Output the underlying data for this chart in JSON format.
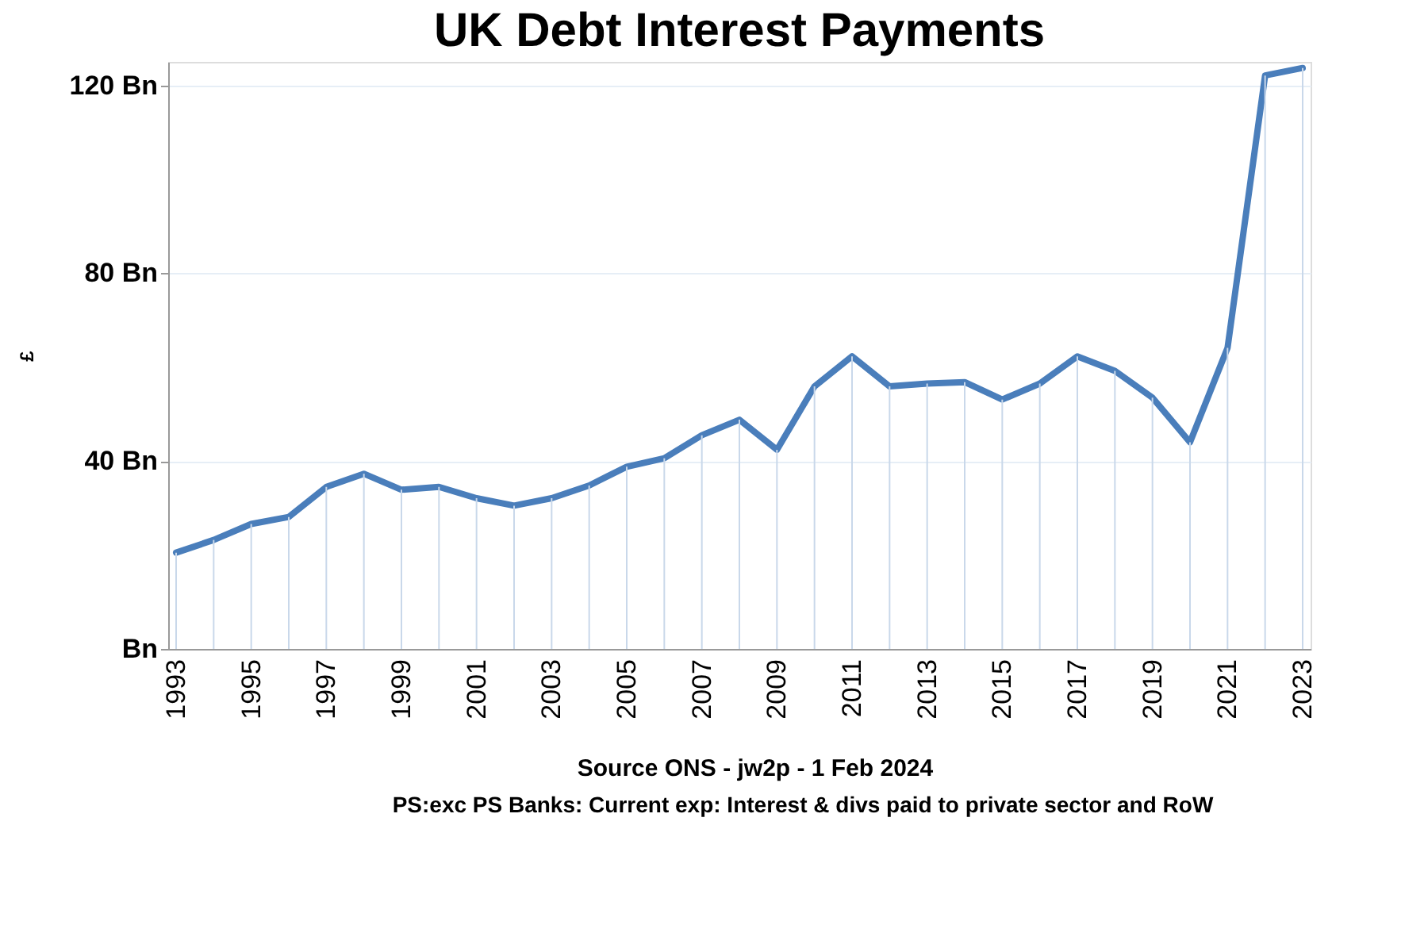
{
  "chart_data": {
    "type": "line",
    "title": "UK Debt Interest Payments",
    "ylabel": "£",
    "x": [
      1993,
      1994,
      1995,
      1996,
      1997,
      1998,
      1999,
      2000,
      2001,
      2002,
      2003,
      2004,
      2005,
      2006,
      2007,
      2008,
      2009,
      2010,
      2011,
      2012,
      2013,
      2014,
      2015,
      2016,
      2017,
      2018,
      2019,
      2020,
      2021,
      2022,
      2023
    ],
    "series": [
      {
        "color": "#4a7ebb",
        "values": [
          20.5,
          23.2,
          26.6,
          28.1,
          34.5,
          37.3,
          33.9,
          34.5,
          32.1,
          30.5,
          32.1,
          34.8,
          38.8,
          40.6,
          45.5,
          48.8,
          42.4,
          55.9,
          62.3,
          55.9,
          56.5,
          56.8,
          53.1,
          56.5,
          62.3,
          59.2,
          53.5,
          44.0,
          64.1,
          122.1,
          123.7
        ]
      },
      {
        "type": "bar",
        "color": "#c9d8ea",
        "values": [
          20.5,
          23.2,
          26.6,
          28.1,
          34.5,
          37.3,
          33.9,
          34.5,
          32.1,
          30.5,
          32.1,
          34.8,
          38.8,
          40.6,
          45.5,
          48.8,
          42.4,
          55.9,
          62.3,
          55.9,
          56.5,
          56.8,
          53.1,
          56.5,
          62.3,
          59.2,
          53.5,
          44.0,
          64.1,
          122.1,
          123.7
        ]
      }
    ],
    "xlim": [
      1993,
      2023
    ],
    "xticks": [
      1993,
      1995,
      1997,
      1999,
      2001,
      2003,
      2005,
      2007,
      2009,
      2011,
      2013,
      2015,
      2017,
      2019,
      2021,
      2023
    ],
    "ylim": [
      0,
      125
    ],
    "yticks": [
      {
        "value": 0,
        "label": "Bn"
      },
      {
        "value": 40,
        "label": "40 Bn"
      },
      {
        "value": 80,
        "label": "80 Bn"
      },
      {
        "value": 120,
        "label": "120 Bn"
      }
    ],
    "grid": "y",
    "marker": "none",
    "line_style": "solid",
    "annotations": [
      "Source ONS - jw2p - 1 Feb 2024",
      "PS:exc PS Banks: Current exp: Interest & divs paid to private sector and RoW"
    ]
  }
}
